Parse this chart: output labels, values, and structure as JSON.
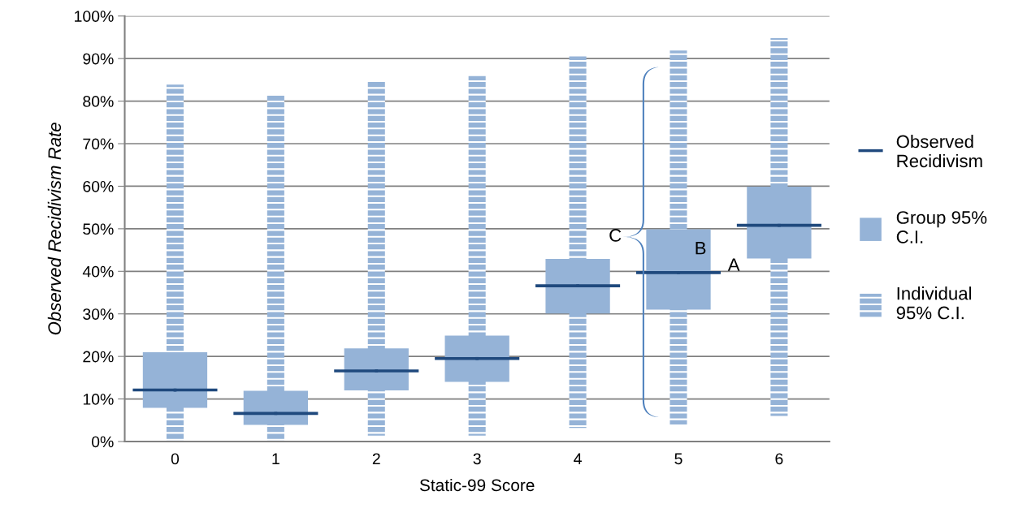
{
  "chart_data": {
    "type": "bar",
    "xlabel": "Static-99 Score",
    "ylabel": "Observed Recidivism Rate",
    "categories": [
      "0",
      "1",
      "2",
      "3",
      "4",
      "5",
      "6"
    ],
    "series": [
      {
        "name": "Individual 95% C.I.",
        "color": "#95b3d7",
        "base": [
          0.3,
          0.3,
          1.4,
          1.4,
          3.2,
          4.0,
          6.0
        ],
        "values": [
          83.6,
          81.0,
          83.4,
          84.5,
          87.3,
          87.9,
          88.8
        ]
      },
      {
        "name": "Group 95% C.I.",
        "color": "#95b3d7",
        "base": [
          7.9,
          3.9,
          12.0,
          14.0,
          30.1,
          31.0,
          43.0
        ],
        "values": [
          13.1,
          8.0,
          9.9,
          10.9,
          12.8,
          18.9,
          16.9
        ]
      },
      {
        "name": "Observed Recidivism",
        "type": "scatter",
        "color": "#1f497d",
        "values": [
          12.1,
          6.6,
          16.6,
          19.5,
          36.6,
          39.7,
          50.8
        ]
      }
    ],
    "ylim": [
      0,
      100
    ],
    "yticks": [
      {
        "value": 0,
        "label": "0%"
      },
      {
        "value": 10,
        "label": "10%"
      },
      {
        "value": 20,
        "label": "20%"
      },
      {
        "value": 30,
        "label": "30%"
      },
      {
        "value": 40,
        "label": "40%"
      },
      {
        "value": 50,
        "label": "50%"
      },
      {
        "value": 60,
        "label": "60%"
      },
      {
        "value": 70,
        "label": "70%"
      },
      {
        "value": 80,
        "label": "80%"
      },
      {
        "value": 90,
        "label": "90%"
      },
      {
        "value": 100,
        "label": "100%"
      }
    ],
    "annotations": [
      {
        "text": "A",
        "x": "5",
        "y": 39.7
      },
      "B",
      "C"
    ],
    "grid": "y",
    "legend": "right"
  }
}
